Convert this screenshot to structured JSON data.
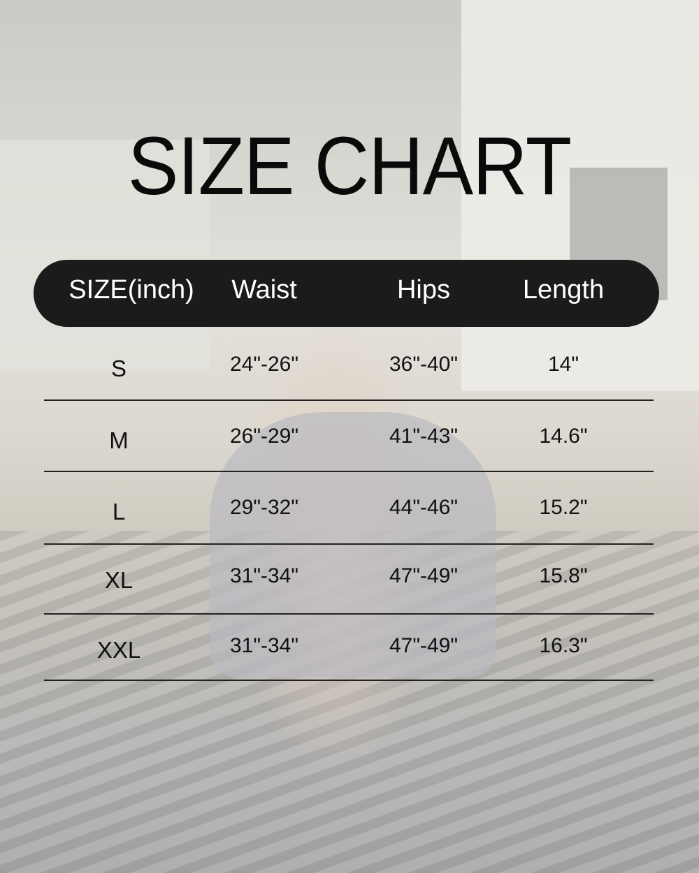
{
  "title": "SIZE CHART",
  "table": {
    "headers": [
      "SIZE(inch)",
      "Waist",
      "Hips",
      "Length"
    ],
    "rows": [
      [
        "S",
        "24\"-26\"",
        "36\"-40\"",
        "14\""
      ],
      [
        "M",
        "26\"-29\"",
        "41\"-43\"",
        "14.6\""
      ],
      [
        "L",
        "29\"-32\"",
        "44\"-46\"",
        "15.2\""
      ],
      [
        "XL",
        "31\"-34\"",
        "47\"-49\"",
        "15.8\""
      ],
      [
        "XXL",
        "31\"-34\"",
        "47\"-49\"",
        "16.3\""
      ]
    ]
  },
  "colors": {
    "header_bg": "#1b1b1b",
    "header_text": "#ffffff",
    "text": "#111111"
  }
}
